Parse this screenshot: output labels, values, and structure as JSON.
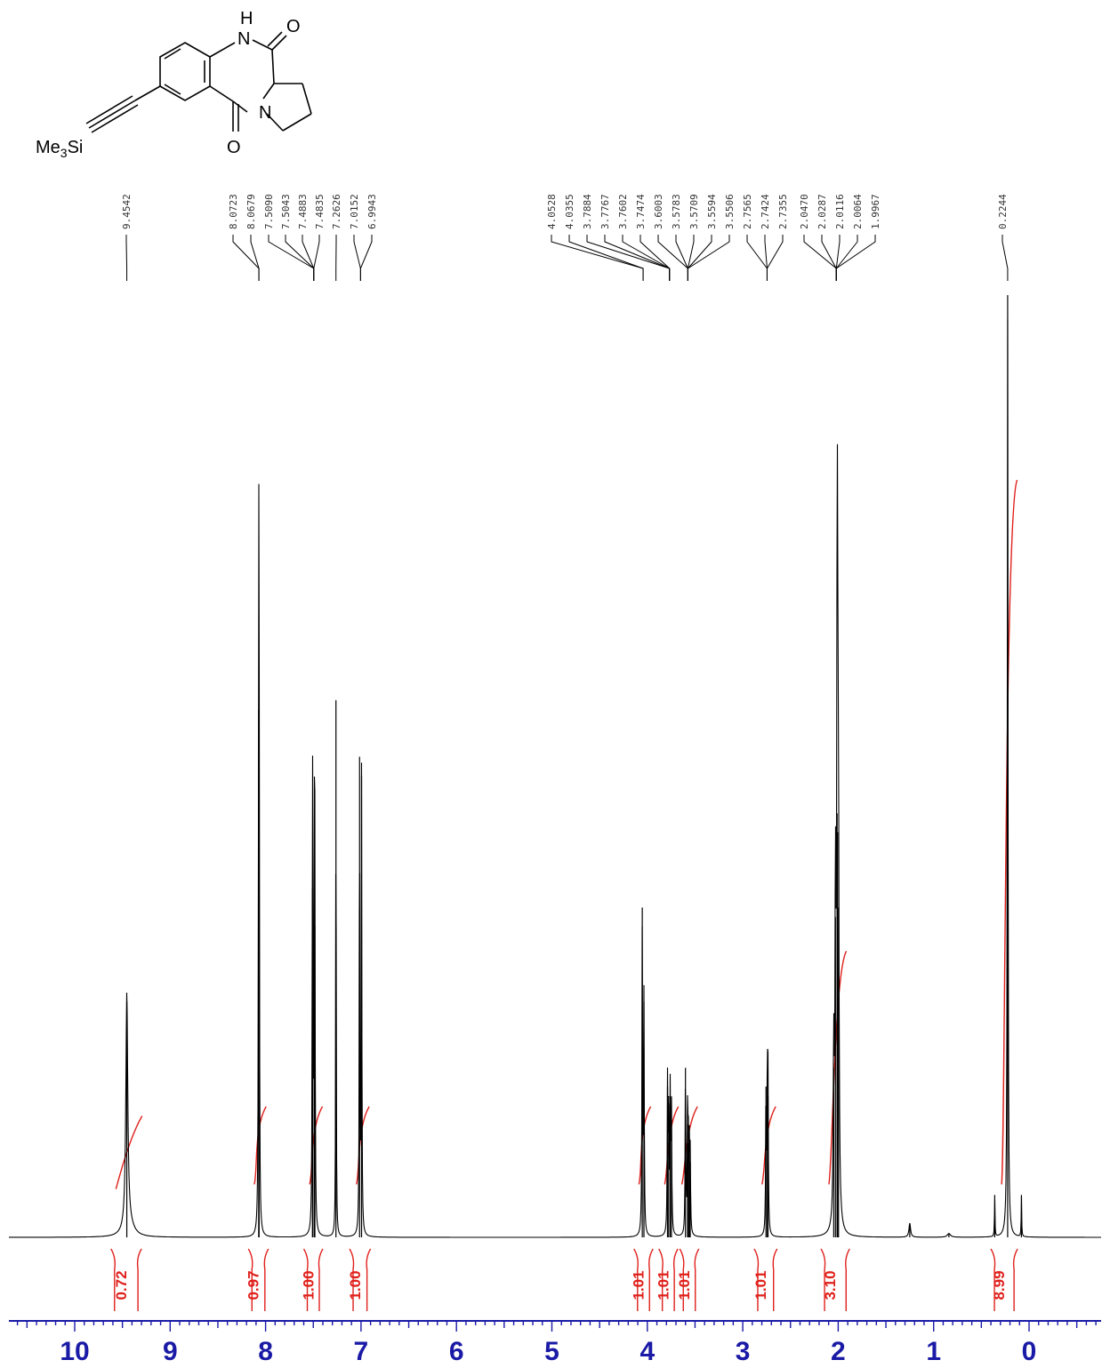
{
  "chart_data": {
    "type": "line",
    "title": "",
    "xlabel": "",
    "ylabel": "",
    "x_axis": {
      "direction": "reversed",
      "range": [
        10.7,
        -0.75
      ],
      "major_ticks": [
        10,
        9,
        8,
        7,
        6,
        5,
        4,
        3,
        2,
        1,
        0
      ],
      "tick_labels": [
        "10",
        "9",
        "8",
        "7",
        "6",
        "5",
        "4",
        "3",
        "2",
        "1",
        "0"
      ],
      "minor_tick_step": 0.1
    },
    "grid": false,
    "structure_labels": {
      "nh_h": "H",
      "nh_n": "N",
      "ring_n": "N",
      "top_o": "O",
      "bottom_o": "O",
      "tms": "Me",
      "tms_sub": "3",
      "tms_si": "Si"
    },
    "peak_labels": [
      "9.4542",
      "8.0723",
      "8.0679",
      "7.5090",
      "7.5043",
      "7.4883",
      "7.4835",
      "7.2626",
      "7.0152",
      "6.9943",
      "4.0528",
      "4.0355",
      "3.7884",
      "3.7767",
      "3.7602",
      "3.7474",
      "3.6003",
      "3.5783",
      "3.5709",
      "3.5594",
      "3.5506",
      "2.7565",
      "2.7424",
      "2.7355",
      "2.0470",
      "2.0287",
      "2.0116",
      "2.0064",
      "1.9967",
      "0.2244"
    ],
    "peak_label_groups": [
      {
        "labels": [
          0
        ],
        "target_ppm": 9.4542
      },
      {
        "labels": [
          1,
          2
        ],
        "target_ppm": 8.07
      },
      {
        "labels": [
          3,
          4,
          5,
          6
        ],
        "target_ppm": 7.495
      },
      {
        "labels": [
          7
        ],
        "target_ppm": 7.2626
      },
      {
        "labels": [
          8,
          9
        ],
        "target_ppm": 7.005
      },
      {
        "labels": [
          10,
          11
        ],
        "target_ppm": 4.044
      },
      {
        "labels": [
          12,
          13,
          14,
          15
        ],
        "target_ppm": 3.768
      },
      {
        "labels": [
          16,
          17,
          18,
          19,
          20
        ],
        "target_ppm": 3.575
      },
      {
        "labels": [
          21,
          22,
          23
        ],
        "target_ppm": 2.745
      },
      {
        "labels": [
          24,
          25,
          26,
          27,
          28
        ],
        "target_ppm": 2.02
      },
      {
        "labels": [
          29
        ],
        "target_ppm": 0.2244
      }
    ],
    "spectrum_peaks": [
      {
        "ppm": 9.4542,
        "height": 0.25,
        "width": 0.012
      },
      {
        "ppm": 8.0723,
        "height": 0.56,
        "width": 0.0035
      },
      {
        "ppm": 8.0679,
        "height": 0.55,
        "width": 0.0035
      },
      {
        "ppm": 7.509,
        "height": 0.37,
        "width": 0.0035
      },
      {
        "ppm": 7.5043,
        "height": 0.34,
        "width": 0.0035
      },
      {
        "ppm": 7.4883,
        "height": 0.35,
        "width": 0.0035
      },
      {
        "ppm": 7.4835,
        "height": 0.33,
        "width": 0.0035
      },
      {
        "ppm": 7.2626,
        "height": 0.57,
        "width": 0.003
      },
      {
        "ppm": 7.0152,
        "height": 0.51,
        "width": 0.0035
      },
      {
        "ppm": 6.9943,
        "height": 0.49,
        "width": 0.0035
      },
      {
        "ppm": 4.0528,
        "height": 0.35,
        "width": 0.004
      },
      {
        "ppm": 4.0355,
        "height": 0.25,
        "width": 0.004
      },
      {
        "ppm": 3.7884,
        "height": 0.16,
        "width": 0.004
      },
      {
        "ppm": 3.7767,
        "height": 0.15,
        "width": 0.004
      },
      {
        "ppm": 3.7602,
        "height": 0.15,
        "width": 0.004
      },
      {
        "ppm": 3.7474,
        "height": 0.14,
        "width": 0.004
      },
      {
        "ppm": 3.6003,
        "height": 0.18,
        "width": 0.004
      },
      {
        "ppm": 3.5783,
        "height": 0.12,
        "width": 0.004
      },
      {
        "ppm": 3.5709,
        "height": 0.1,
        "width": 0.004
      },
      {
        "ppm": 3.5594,
        "height": 0.09,
        "width": 0.004
      },
      {
        "ppm": 3.5506,
        "height": 0.08,
        "width": 0.004
      },
      {
        "ppm": 2.7565,
        "height": 0.16,
        "width": 0.004
      },
      {
        "ppm": 2.7424,
        "height": 0.17,
        "width": 0.004
      },
      {
        "ppm": 2.7355,
        "height": 0.15,
        "width": 0.004
      },
      {
        "ppm": 2.047,
        "height": 0.18,
        "width": 0.006
      },
      {
        "ppm": 2.0287,
        "height": 0.34,
        "width": 0.006
      },
      {
        "ppm": 2.0116,
        "height": 0.45,
        "width": 0.006
      },
      {
        "ppm": 2.0064,
        "height": 0.43,
        "width": 0.006
      },
      {
        "ppm": 1.9967,
        "height": 0.35,
        "width": 0.006
      },
      {
        "ppm": 1.25,
        "height": 0.015,
        "width": 0.01
      },
      {
        "ppm": 0.84,
        "height": 0.004,
        "width": 0.02
      },
      {
        "ppm": 0.36,
        "height": 0.045,
        "width": 0.003
      },
      {
        "ppm": 0.2244,
        "height": 1.0,
        "width": 0.0045
      },
      {
        "ppm": 0.08,
        "height": 0.045,
        "width": 0.003
      }
    ],
    "integrals": [
      {
        "label": "0.72",
        "from_ppm": 9.62,
        "to_ppm": 9.3,
        "curve_from": 9.55,
        "curve_to": 9.35,
        "rel_start": 0.055,
        "rel_end": 0.125
      },
      {
        "label": "0.97",
        "from_ppm": 8.18,
        "to_ppm": 7.97,
        "curve_from": 8.1,
        "curve_to": 8.05,
        "rel_start": 0.06,
        "rel_end": 0.135
      },
      {
        "label": "1.00",
        "from_ppm": 7.6,
        "to_ppm": 7.4,
        "curve_from": 7.52,
        "curve_to": 7.46,
        "rel_start": 0.06,
        "rel_end": 0.135
      },
      {
        "label": "1.00",
        "from_ppm": 7.12,
        "to_ppm": 6.9,
        "curve_from": 7.03,
        "curve_to": 6.97,
        "rel_start": 0.06,
        "rel_end": 0.135
      },
      {
        "label": "1.01",
        "from_ppm": 4.14,
        "to_ppm": 3.94,
        "curve_from": 4.07,
        "curve_to": 4.02,
        "rel_start": 0.06,
        "rel_end": 0.135
      },
      {
        "label": "1.01",
        "from_ppm": 3.88,
        "to_ppm": 3.68,
        "curve_from": 3.8,
        "curve_to": 3.73,
        "rel_start": 0.06,
        "rel_end": 0.135
      },
      {
        "label": "1.01",
        "from_ppm": 3.66,
        "to_ppm": 3.46,
        "curve_from": 3.62,
        "curve_to": 3.53,
        "rel_start": 0.06,
        "rel_end": 0.135
      },
      {
        "label": "1.01",
        "from_ppm": 2.88,
        "to_ppm": 2.64,
        "curve_from": 2.78,
        "curve_to": 2.71,
        "rel_start": 0.06,
        "rel_end": 0.135
      },
      {
        "label": "3.10",
        "from_ppm": 2.18,
        "to_ppm": 1.88,
        "curve_from": 2.08,
        "curve_to": 1.97,
        "rel_start": 0.06,
        "rel_end": 0.3
      },
      {
        "label": "8.99",
        "from_ppm": 0.4,
        "to_ppm": 0.12,
        "curve_from": 0.27,
        "curve_to": 0.18,
        "rel_start": 0.06,
        "rel_end": 0.8
      }
    ],
    "colors": {
      "spectrum": "#000000",
      "integral": "#e0201b",
      "axis": "#1a1aa6",
      "peak_label": "#333333"
    }
  }
}
